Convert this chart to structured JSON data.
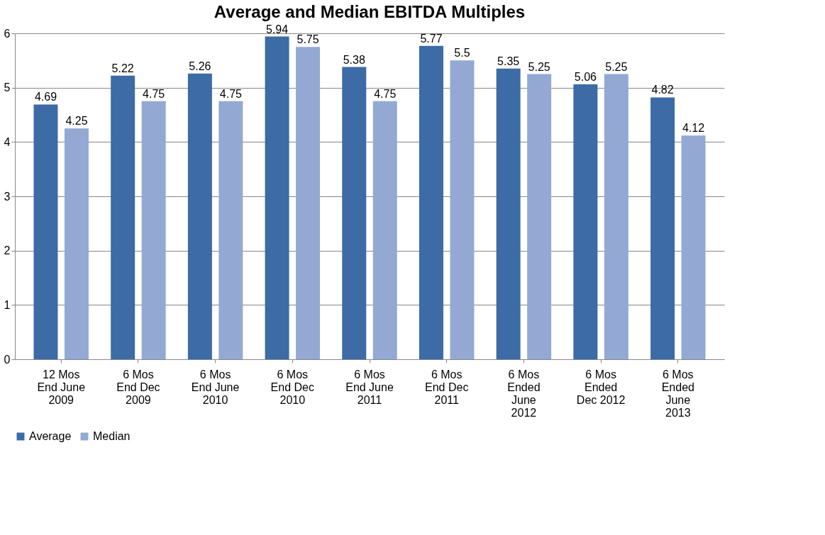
{
  "chart_data": {
    "type": "bar",
    "title": "Average and Median EBITDA Multiples",
    "categories": [
      "12 Mos\nEnd June\n2009",
      "6 Mos\nEnd Dec\n2009",
      "6 Mos\nEnd June\n2010",
      "6 Mos\nEnd Dec\n2010",
      "6 Mos\nEnd June\n2011",
      "6 Mos\nEnd Dec\n2011",
      "6 Mos\nEnded\nJune\n2012",
      "6 Mos\nEnded\nDec 2012",
      "6 Mos\nEnded\nJune\n2013"
    ],
    "series": [
      {
        "name": "Average",
        "color": "#3c6ba5",
        "values": [
          4.69,
          5.22,
          5.26,
          5.94,
          5.38,
          5.77,
          5.35,
          5.06,
          4.82
        ]
      },
      {
        "name": "Median",
        "color": "#93a9d4",
        "values": [
          4.25,
          4.75,
          4.75,
          5.75,
          4.75,
          5.5,
          5.25,
          5.25,
          4.12
        ]
      }
    ],
    "ylim": [
      0,
      6
    ],
    "yticks": [
      0,
      1,
      2,
      3,
      4,
      5,
      6
    ],
    "grid": "y",
    "legend": "bottom",
    "data_labels": true
  }
}
